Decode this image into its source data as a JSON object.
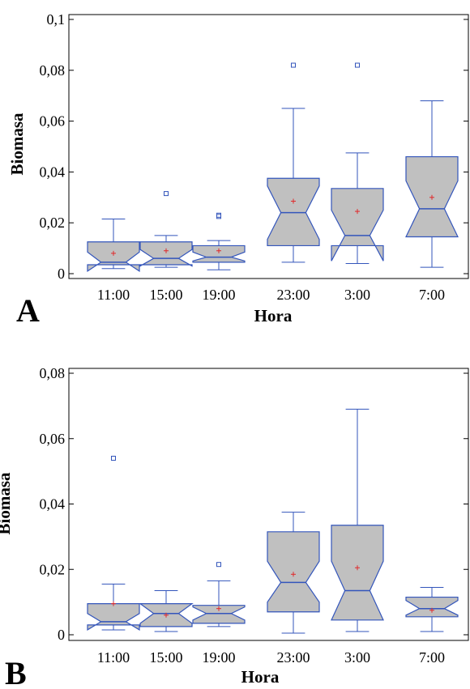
{
  "chart_data": [
    {
      "type": "boxplot",
      "panel_label": "A",
      "xlabel": "Hora",
      "ylabel": "Biomasa",
      "ylim": [
        0,
        0.1
      ],
      "yticks": [
        {
          "value": 0,
          "label": "0"
        },
        {
          "value": 0.02,
          "label": "0,02"
        },
        {
          "value": 0.04,
          "label": "0,04"
        },
        {
          "value": 0.06,
          "label": "0,06"
        },
        {
          "value": 0.08,
          "label": "0,08"
        },
        {
          "value": 0.1,
          "label": "0,1"
        }
      ],
      "categories": [
        "11:00",
        "15:00",
        "19:00",
        "23:00",
        "3:00",
        "7:00"
      ],
      "boxes": [
        {
          "whisker_low": 0.002,
          "q1": 0.0035,
          "median": 0.0045,
          "q3": 0.0125,
          "whisker_high": 0.0215,
          "mean": 0.008,
          "notch_low": 0.001,
          "notch_high": 0.0085,
          "outliers": []
        },
        {
          "whisker_low": 0.0025,
          "q1": 0.0035,
          "median": 0.006,
          "q3": 0.0125,
          "whisker_high": 0.015,
          "mean": 0.009,
          "notch_low": 0.003,
          "notch_high": 0.0095,
          "outliers": [
            0.0315
          ]
        },
        {
          "whisker_low": 0.0015,
          "q1": 0.0045,
          "median": 0.0065,
          "q3": 0.011,
          "whisker_high": 0.013,
          "mean": 0.009,
          "notch_low": 0.005,
          "notch_high": 0.0085,
          "outliers": [
            0.0225,
            0.023
          ]
        },
        {
          "whisker_low": 0.0045,
          "q1": 0.011,
          "median": 0.024,
          "q3": 0.0375,
          "whisker_high": 0.065,
          "mean": 0.0285,
          "notch_low": 0.0135,
          "notch_high": 0.0345,
          "outliers": [
            0.082
          ]
        },
        {
          "whisker_low": 0.004,
          "q1": 0.011,
          "median": 0.015,
          "q3": 0.0335,
          "whisker_high": 0.0475,
          "mean": 0.0245,
          "notch_low": 0.005,
          "notch_high": 0.025,
          "outliers": [
            0.082
          ]
        },
        {
          "whisker_low": 0.0025,
          "q1": 0.0145,
          "median": 0.0255,
          "q3": 0.046,
          "whisker_high": 0.068,
          "mean": 0.03,
          "notch_low": 0.0145,
          "notch_high": 0.0365,
          "outliers": []
        }
      ]
    },
    {
      "type": "boxplot",
      "panel_label": "B",
      "xlabel": "Hora",
      "ylabel": "Biomasa",
      "ylim": [
        0,
        0.08
      ],
      "yticks": [
        {
          "value": 0,
          "label": "0"
        },
        {
          "value": 0.02,
          "label": "0,02"
        },
        {
          "value": 0.04,
          "label": "0,04"
        },
        {
          "value": 0.06,
          "label": "0,06"
        },
        {
          "value": 0.08,
          "label": "0,08"
        }
      ],
      "categories": [
        "11:00",
        "15:00",
        "19:00",
        "23:00",
        "3:00",
        "7:00"
      ],
      "boxes": [
        {
          "whisker_low": 0.0015,
          "q1": 0.003,
          "median": 0.004,
          "q3": 0.0095,
          "whisker_high": 0.0155,
          "mean": 0.0095,
          "notch_low": 0.0015,
          "notch_high": 0.0065,
          "outliers": [
            0.054
          ]
        },
        {
          "whisker_low": 0.001,
          "q1": 0.0025,
          "median": 0.0065,
          "q3": 0.0095,
          "whisker_high": 0.0135,
          "mean": 0.006,
          "notch_low": 0.0035,
          "notch_high": 0.0095,
          "outliers": []
        },
        {
          "whisker_low": 0.0025,
          "q1": 0.0035,
          "median": 0.0065,
          "q3": 0.009,
          "whisker_high": 0.0165,
          "mean": 0.008,
          "notch_low": 0.0045,
          "notch_high": 0.0085,
          "outliers": [
            0.0215
          ]
        },
        {
          "whisker_low": 0.0005,
          "q1": 0.007,
          "median": 0.016,
          "q3": 0.0315,
          "whisker_high": 0.0375,
          "mean": 0.0185,
          "notch_low": 0.01,
          "notch_high": 0.0225,
          "outliers": []
        },
        {
          "whisker_low": 0.001,
          "q1": 0.0045,
          "median": 0.0135,
          "q3": 0.0335,
          "whisker_high": 0.069,
          "mean": 0.0205,
          "notch_low": 0.0045,
          "notch_high": 0.0225,
          "outliers": []
        },
        {
          "whisker_low": 0.001,
          "q1": 0.0055,
          "median": 0.008,
          "q3": 0.0115,
          "whisker_high": 0.0145,
          "mean": 0.0075,
          "notch_low": 0.006,
          "notch_high": 0.0105,
          "outliers": []
        }
      ]
    }
  ],
  "colors": {
    "box_fill": "#c0c0c0",
    "box_stroke": "#3355bb",
    "mean_marker": "#e0282a",
    "outlier": "#3355bb",
    "axis": "#000000"
  }
}
